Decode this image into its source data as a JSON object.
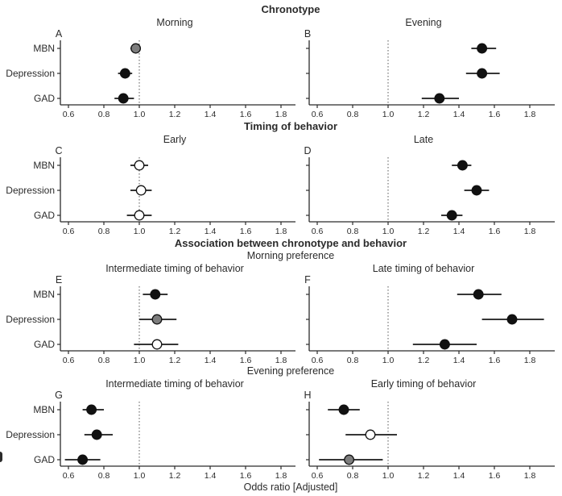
{
  "chart_data": {
    "type": "scatter",
    "subtype": "forest-plot",
    "title": "",
    "xlabel": "Odds ratio [Adjusted]",
    "ylabel": "",
    "categories": [
      "MBN",
      "Depression",
      "GAD"
    ],
    "x_ticks": [
      0.6,
      0.8,
      1.0,
      1.2,
      1.4,
      1.6,
      1.8
    ],
    "xlim": [
      0.55,
      1.9
    ],
    "reference_line": 1.0,
    "grid": false,
    "legend": false,
    "marker_colors": {
      "black": "#111111",
      "gray": "#7d7d7d",
      "white": "#ffffff"
    },
    "sections": [
      {
        "header": "Chronotype",
        "subheader": null,
        "panels": [
          {
            "letter": "A",
            "title": "Morning",
            "points": [
              {
                "category": "MBN",
                "or": 0.98,
                "ci_low": 0.95,
                "ci_high": 1.0,
                "marker": "gray"
              },
              {
                "category": "Depression",
                "or": 0.92,
                "ci_low": 0.88,
                "ci_high": 0.96,
                "marker": "black"
              },
              {
                "category": "GAD",
                "or": 0.91,
                "ci_low": 0.86,
                "ci_high": 0.97,
                "marker": "black"
              }
            ]
          },
          {
            "letter": "B",
            "title": "Evening",
            "points": [
              {
                "category": "MBN",
                "or": 1.53,
                "ci_low": 1.47,
                "ci_high": 1.61,
                "marker": "black"
              },
              {
                "category": "Depression",
                "or": 1.53,
                "ci_low": 1.44,
                "ci_high": 1.63,
                "marker": "black"
              },
              {
                "category": "GAD",
                "or": 1.29,
                "ci_low": 1.19,
                "ci_high": 1.4,
                "marker": "black"
              }
            ]
          }
        ]
      },
      {
        "header": "Timing of behavior",
        "subheader": null,
        "panels": [
          {
            "letter": "C",
            "title": "Early",
            "points": [
              {
                "category": "MBN",
                "or": 1.0,
                "ci_low": 0.95,
                "ci_high": 1.05,
                "marker": "white"
              },
              {
                "category": "Depression",
                "or": 1.01,
                "ci_low": 0.95,
                "ci_high": 1.07,
                "marker": "white"
              },
              {
                "category": "GAD",
                "or": 1.0,
                "ci_low": 0.93,
                "ci_high": 1.07,
                "marker": "white"
              }
            ]
          },
          {
            "letter": "D",
            "title": "Late",
            "points": [
              {
                "category": "MBN",
                "or": 1.42,
                "ci_low": 1.36,
                "ci_high": 1.47,
                "marker": "black"
              },
              {
                "category": "Depression",
                "or": 1.5,
                "ci_low": 1.43,
                "ci_high": 1.57,
                "marker": "black"
              },
              {
                "category": "GAD",
                "or": 1.36,
                "ci_low": 1.3,
                "ci_high": 1.42,
                "marker": "black"
              }
            ]
          }
        ]
      },
      {
        "header": "Association between chronotype and behavior",
        "subheader": "Morning preference",
        "panels": [
          {
            "letter": "E",
            "title": "Intermediate timing of behavior",
            "points": [
              {
                "category": "MBN",
                "or": 1.09,
                "ci_low": 1.02,
                "ci_high": 1.16,
                "marker": "black"
              },
              {
                "category": "Depression",
                "or": 1.1,
                "ci_low": 1.0,
                "ci_high": 1.21,
                "marker": "gray"
              },
              {
                "category": "GAD",
                "or": 1.1,
                "ci_low": 0.97,
                "ci_high": 1.22,
                "marker": "white"
              }
            ]
          },
          {
            "letter": "F",
            "title": "Late timing of behavior",
            "points": [
              {
                "category": "MBN",
                "or": 1.51,
                "ci_low": 1.39,
                "ci_high": 1.64,
                "marker": "black"
              },
              {
                "category": "Depression",
                "or": 1.7,
                "ci_low": 1.53,
                "ci_high": 1.88,
                "marker": "black"
              },
              {
                "category": "GAD",
                "or": 1.32,
                "ci_low": 1.14,
                "ci_high": 1.5,
                "marker": "black"
              }
            ]
          }
        ]
      },
      {
        "header": null,
        "subheader": "Evening preference",
        "panels": [
          {
            "letter": "G",
            "title": "Intermediate timing of behavior",
            "points": [
              {
                "category": "MBN",
                "or": 0.73,
                "ci_low": 0.68,
                "ci_high": 0.8,
                "marker": "black"
              },
              {
                "category": "Depression",
                "or": 0.76,
                "ci_low": 0.69,
                "ci_high": 0.85,
                "marker": "black"
              },
              {
                "category": "GAD",
                "or": 0.68,
                "ci_low": 0.58,
                "ci_high": 0.78,
                "marker": "black"
              }
            ]
          },
          {
            "letter": "H",
            "title": "Early timing of behavior",
            "points": [
              {
                "category": "MBN",
                "or": 0.75,
                "ci_low": 0.66,
                "ci_high": 0.84,
                "marker": "black"
              },
              {
                "category": "Depression",
                "or": 0.9,
                "ci_low": 0.76,
                "ci_high": 1.05,
                "marker": "white"
              },
              {
                "category": "GAD",
                "or": 0.78,
                "ci_low": 0.61,
                "ci_high": 0.97,
                "marker": "gray"
              }
            ]
          }
        ]
      }
    ]
  }
}
